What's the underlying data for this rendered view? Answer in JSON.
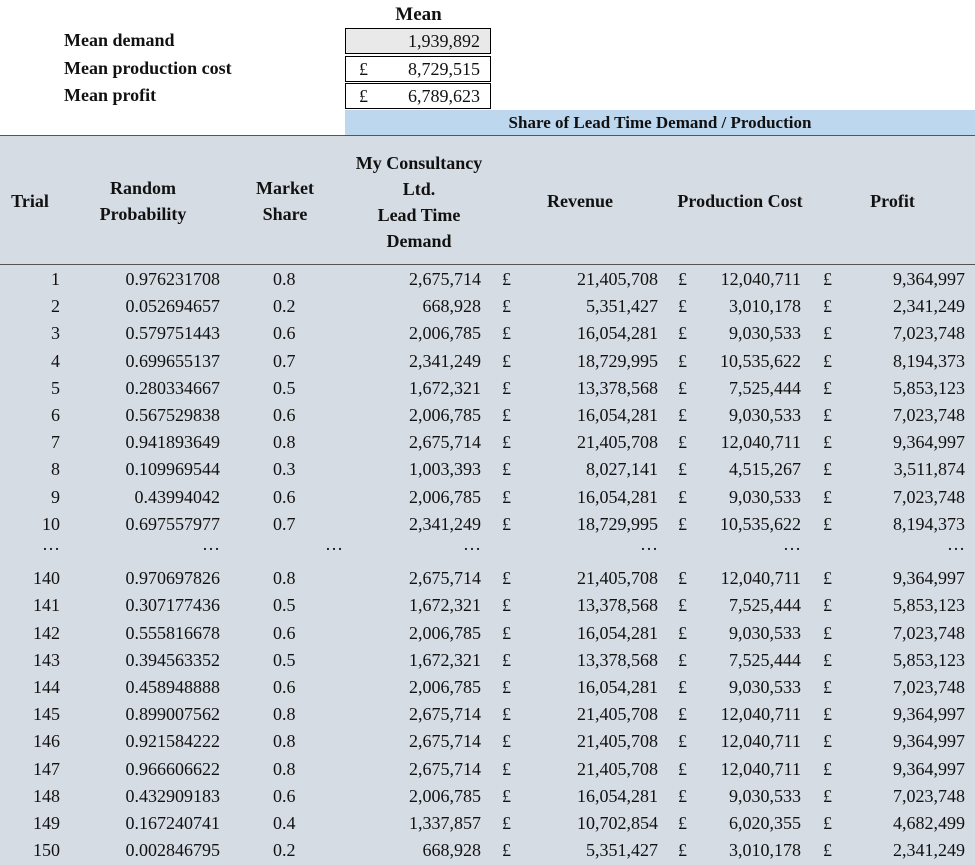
{
  "summary": {
    "mean_heading": "Mean",
    "rows": [
      {
        "label": "Mean demand",
        "currency": "",
        "value": "1,939,892"
      },
      {
        "label": "Mean production cost",
        "currency": "£",
        "value": "8,729,515"
      },
      {
        "label": "Mean profit",
        "currency": "£",
        "value": "6,789,623"
      }
    ]
  },
  "banner": "Share of Lead Time Demand / Production",
  "headers": {
    "trial": "Trial",
    "prob_1": "Random",
    "prob_2": "Probability",
    "share_1": "Market",
    "share_2": "Share",
    "demand_1": "My Consultancy",
    "demand_2": "Ltd.",
    "demand_3": "Lead Time",
    "demand_4": "Demand",
    "revenue": "Revenue",
    "cost": "Production Cost",
    "profit": "Profit"
  },
  "currency_symbol": "£",
  "ellipsis": "…",
  "rows": [
    {
      "trial": "1",
      "prob": "0.976231708",
      "share": "0.8",
      "demand": "2,675,714",
      "revenue": "21,405,708",
      "cost": "12,040,711",
      "profit": "9,364,997"
    },
    {
      "trial": "2",
      "prob": "0.052694657",
      "share": "0.2",
      "demand": "668,928",
      "revenue": "5,351,427",
      "cost": "3,010,178",
      "profit": "2,341,249"
    },
    {
      "trial": "3",
      "prob": "0.579751443",
      "share": "0.6",
      "demand": "2,006,785",
      "revenue": "16,054,281",
      "cost": "9,030,533",
      "profit": "7,023,748"
    },
    {
      "trial": "4",
      "prob": "0.699655137",
      "share": "0.7",
      "demand": "2,341,249",
      "revenue": "18,729,995",
      "cost": "10,535,622",
      "profit": "8,194,373"
    },
    {
      "trial": "5",
      "prob": "0.280334667",
      "share": "0.5",
      "demand": "1,672,321",
      "revenue": "13,378,568",
      "cost": "7,525,444",
      "profit": "5,853,123"
    },
    {
      "trial": "6",
      "prob": "0.567529838",
      "share": "0.6",
      "demand": "2,006,785",
      "revenue": "16,054,281",
      "cost": "9,030,533",
      "profit": "7,023,748"
    },
    {
      "trial": "7",
      "prob": "0.941893649",
      "share": "0.8",
      "demand": "2,675,714",
      "revenue": "21,405,708",
      "cost": "12,040,711",
      "profit": "9,364,997"
    },
    {
      "trial": "8",
      "prob": "0.109969544",
      "share": "0.3",
      "demand": "1,003,393",
      "revenue": "8,027,141",
      "cost": "4,515,267",
      "profit": "3,511,874"
    },
    {
      "trial": "9",
      "prob": "0.43994042",
      "share": "0.6",
      "demand": "2,006,785",
      "revenue": "16,054,281",
      "cost": "9,030,533",
      "profit": "7,023,748"
    },
    {
      "trial": "10",
      "prob": "0.697557977",
      "share": "0.7",
      "demand": "2,341,249",
      "revenue": "18,729,995",
      "cost": "10,535,622",
      "profit": "8,194,373"
    },
    {
      "trial": "140",
      "prob": "0.970697826",
      "share": "0.8",
      "demand": "2,675,714",
      "revenue": "21,405,708",
      "cost": "12,040,711",
      "profit": "9,364,997"
    },
    {
      "trial": "141",
      "prob": "0.307177436",
      "share": "0.5",
      "demand": "1,672,321",
      "revenue": "13,378,568",
      "cost": "7,525,444",
      "profit": "5,853,123"
    },
    {
      "trial": "142",
      "prob": "0.555816678",
      "share": "0.6",
      "demand": "2,006,785",
      "revenue": "16,054,281",
      "cost": "9,030,533",
      "profit": "7,023,748"
    },
    {
      "trial": "143",
      "prob": "0.394563352",
      "share": "0.5",
      "demand": "1,672,321",
      "revenue": "13,378,568",
      "cost": "7,525,444",
      "profit": "5,853,123"
    },
    {
      "trial": "144",
      "prob": "0.458948888",
      "share": "0.6",
      "demand": "2,006,785",
      "revenue": "16,054,281",
      "cost": "9,030,533",
      "profit": "7,023,748"
    },
    {
      "trial": "145",
      "prob": "0.899007562",
      "share": "0.8",
      "demand": "2,675,714",
      "revenue": "21,405,708",
      "cost": "12,040,711",
      "profit": "9,364,997"
    },
    {
      "trial": "146",
      "prob": "0.921584222",
      "share": "0.8",
      "demand": "2,675,714",
      "revenue": "21,405,708",
      "cost": "12,040,711",
      "profit": "9,364,997"
    },
    {
      "trial": "147",
      "prob": "0.966606622",
      "share": "0.8",
      "demand": "2,675,714",
      "revenue": "21,405,708",
      "cost": "12,040,711",
      "profit": "9,364,997"
    },
    {
      "trial": "148",
      "prob": "0.432909183",
      "share": "0.6",
      "demand": "2,006,785",
      "revenue": "16,054,281",
      "cost": "9,030,533",
      "profit": "7,023,748"
    },
    {
      "trial": "149",
      "prob": "0.167240741",
      "share": "0.4",
      "demand": "1,337,857",
      "revenue": "10,702,854",
      "cost": "6,020,355",
      "profit": "4,682,499"
    },
    {
      "trial": "150",
      "prob": "0.002846795",
      "share": "0.2",
      "demand": "668,928",
      "revenue": "5,351,427",
      "cost": "3,010,178",
      "profit": "2,341,249"
    }
  ]
}
